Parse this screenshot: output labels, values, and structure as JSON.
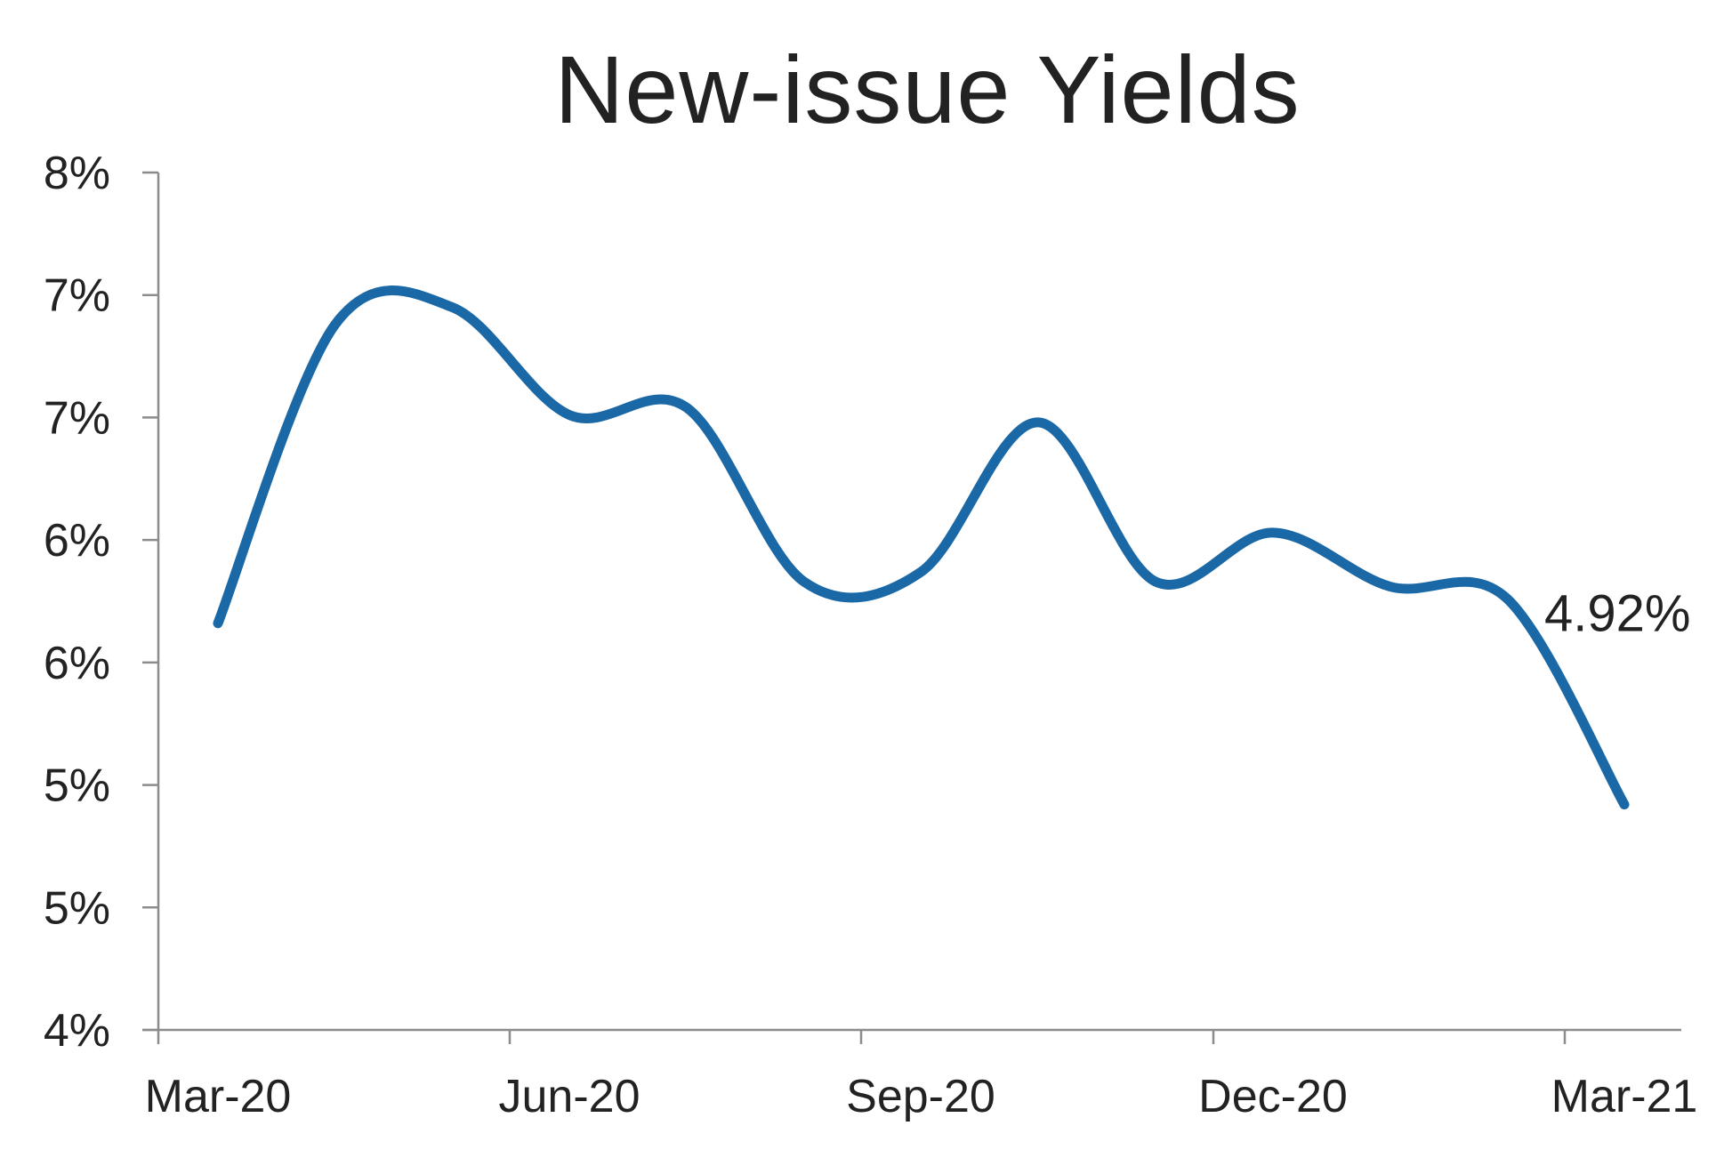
{
  "chart_data": {
    "type": "line",
    "title": "New-issue Yields",
    "xlabel": "",
    "ylabel": "",
    "x_tick_labels": [
      "Mar-20",
      "Jun-20",
      "Sep-20",
      "Dec-20",
      "Mar-21"
    ],
    "y_tick_labels": [
      "4%",
      "5%",
      "5%",
      "6%",
      "6%",
      "7%",
      "7%",
      "8%"
    ],
    "ylim": [
      4.0,
      7.5
    ],
    "grid": false,
    "x": [
      "Mar-20",
      "Apr-20",
      "May-20",
      "Jun-20",
      "Jul-20",
      "Aug-20",
      "Sep-20",
      "Oct-20",
      "Nov-20",
      "Dec-20",
      "Jan-21",
      "Feb-21",
      "Mar-21"
    ],
    "series": [
      {
        "color": "#1a68a6",
        "values": [
          5.66,
          6.88,
          6.95,
          6.51,
          6.54,
          5.83,
          5.87,
          6.48,
          5.83,
          6.03,
          5.81,
          5.76,
          4.92
        ]
      }
    ],
    "annotations": [
      {
        "text": "4.92%",
        "x": "Mar-21",
        "y": 4.92
      }
    ]
  }
}
